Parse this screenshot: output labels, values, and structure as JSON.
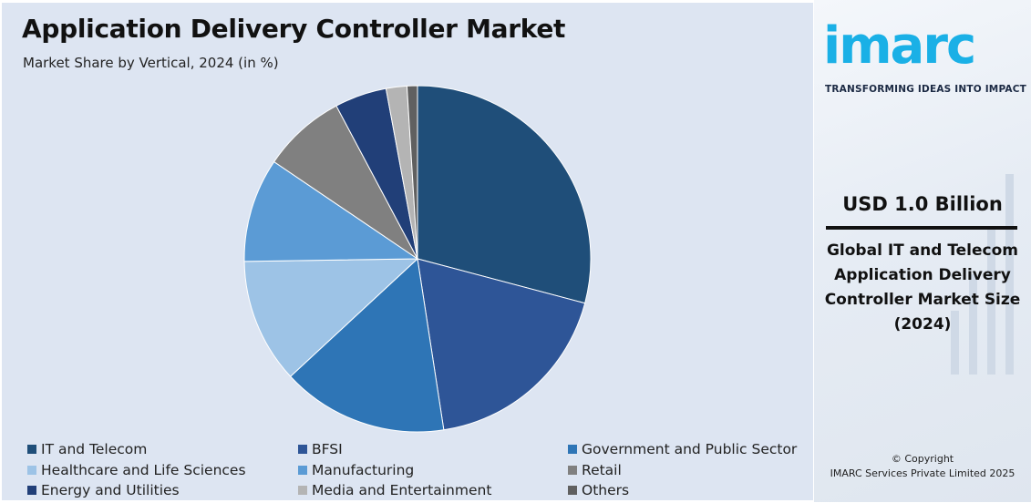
{
  "title": "Application Delivery Controller Market",
  "subtitle": "Market Share by Vertical, 2024 (in %)",
  "chart_data": {
    "type": "pie",
    "title": "Application Delivery Controller Market",
    "subtitle": "Market Share by Vertical, 2024 (in %)",
    "categories": [
      "IT and Telecom",
      "BFSI",
      "Government and Public Sector",
      "Healthcare and Life Sciences",
      "Manufacturing",
      "Retail",
      "Energy and Utilities",
      "Media and Entertainment",
      "Others"
    ],
    "values": [
      30,
      19,
      16,
      12,
      10,
      8,
      5,
      2,
      1
    ],
    "colors": [
      "#1f4e79",
      "#2e5597",
      "#2e75b6",
      "#9dc3e6",
      "#5b9bd5",
      "#808080",
      "#213f78",
      "#b4b4b4",
      "#606060"
    ],
    "legend_position": "bottom"
  },
  "sidebar": {
    "logo_text": "imarc",
    "tagline": "TRANSFORMING IDEAS INTO IMPACT",
    "market_value": "USD 1.0 Billion",
    "value_description": "Global IT and Telecom Application Delivery Controller Market Size (2024)",
    "copyright_line1": "© Copyright",
    "copyright_line2": "IMARC Services Private Limited 2025"
  }
}
